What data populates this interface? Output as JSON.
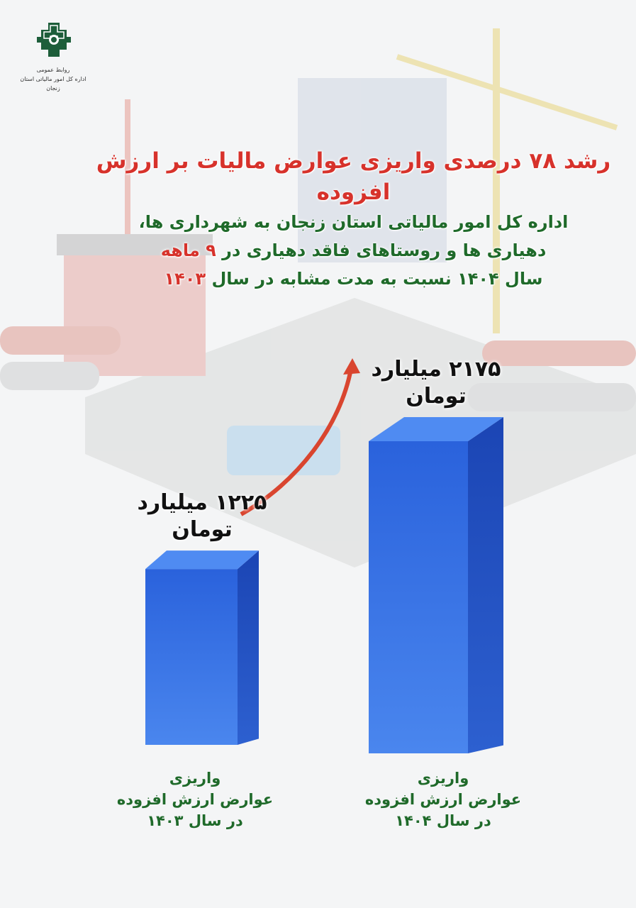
{
  "logo": {
    "line1": "روابط عمومی",
    "line2": "اداره کل امور مالیاتی استان زنجان"
  },
  "headline": {
    "title": "رشد ۷۸ درصدی واریزی عوارض مالیات بر ارزش افزوده",
    "line1": "اداره کل امور مالیاتی استان زنجان به شهرداری ها،",
    "line2a": "دهیاری ها و روستاهای فاقد دهیاری در",
    "line2b": "۹ ماهه",
    "line3a": "سال ۱۴۰۴ نسبت به مدت مشابه در سال",
    "line3b": "۱۴۰۳"
  },
  "colors": {
    "title": "#d7322b",
    "subtitle": "#1f6a2a",
    "bar": "#2f6be0",
    "arrow": "#d9452f"
  },
  "chart_data": {
    "type": "bar",
    "categories": [
      "واریزی عوارض ارزش افزوده در سال ۱۴۰۳",
      "واریزی عوارض ارزش افزوده در سال ۱۴۰۴"
    ],
    "values": [
      1225,
      2175
    ],
    "unit": "میلیارد تومان",
    "data_labels": [
      {
        "amount": "۱۲۲۵ میلیارد",
        "unit": "تومان"
      },
      {
        "amount": "۲۱۷۵ میلیارد",
        "unit": "تومان"
      }
    ],
    "category_labels": [
      {
        "l1": "واریزی",
        "l2": "عوارض ارزش افزوده",
        "l3": "در سال ۱۴۰۳"
      },
      {
        "l1": "واریزی",
        "l2": "عوارض ارزش افزوده",
        "l3": "در سال ۱۴۰۴"
      }
    ],
    "growth_arrow": true
  }
}
